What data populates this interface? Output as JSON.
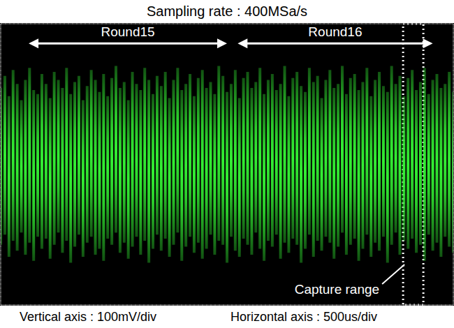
{
  "chart_data": {
    "type": "bar",
    "title": "Sampling rate : 400MSa/s",
    "x_label": "Horizontal axis : 500us/div",
    "y_label": "Vertical axis : 100mV/div",
    "color": "#33ee33",
    "grid": true,
    "tick_labels": false,
    "xlim": [
      -300,
      5200
    ],
    "xticks": [
      0,
      500,
      1000,
      1500,
      2000,
      2500,
      3000,
      3500,
      4000,
      4500,
      5000
    ],
    "ylim": [
      -350,
      350
    ],
    "yticks": [
      -300,
      -200,
      -100,
      0,
      100,
      200,
      300
    ],
    "x": [
      -300,
      -250,
      -200,
      -150,
      -100,
      -50,
      0,
      50,
      100,
      150,
      200,
      250,
      300,
      350,
      400,
      450,
      500,
      550,
      600,
      650,
      700,
      750,
      800,
      850,
      900,
      950,
      1000,
      1050,
      1100,
      1150,
      1200,
      1250,
      1300,
      1350,
      1400,
      1450,
      1500,
      1550,
      1600,
      1650,
      1700,
      1750,
      1800,
      1850,
      1900,
      1950,
      2000,
      2050,
      2100,
      2150,
      2200,
      2250,
      2300,
      2350,
      2400,
      2450,
      2500,
      2550,
      2600,
      2650,
      2700,
      2750,
      2800,
      2850,
      2900,
      2950,
      3000,
      3050,
      3100,
      3150,
      3200,
      3250,
      3300,
      3350,
      3400,
      3450,
      3500,
      3550,
      3600,
      3650,
      3700,
      3750,
      3800,
      3850,
      3900,
      3950,
      4000,
      4050,
      4100,
      4150,
      4200,
      4250,
      4300,
      4350,
      4400,
      4450,
      4500,
      4550,
      4600,
      4650,
      4700,
      4750,
      4800,
      4850,
      4900,
      4950,
      5000,
      5050,
      5100,
      5150,
      5200
    ],
    "values": [
      190,
      220,
      170,
      235,
      200,
      160,
      210,
      240,
      185,
      175,
      225,
      200,
      165,
      230,
      210,
      190,
      240,
      175,
      205,
      220,
      160,
      195,
      235,
      210,
      180,
      225,
      170,
      215,
      245,
      190,
      205,
      160,
      230,
      200,
      185,
      240,
      210,
      175,
      220,
      195,
      230,
      165,
      210,
      240,
      185,
      200,
      225,
      170,
      215,
      235,
      190,
      205,
      175,
      245,
      220,
      180,
      200,
      235,
      165,
      215,
      230,
      190,
      205,
      240,
      175,
      210,
      225,
      185,
      200,
      245,
      170,
      215,
      230,
      195,
      180,
      240,
      205,
      220,
      165,
      210,
      235,
      190,
      200,
      245,
      175,
      215,
      225,
      185,
      205,
      240,
      170,
      210,
      230,
      195,
      180,
      245,
      200,
      220,
      170,
      215,
      235,
      185,
      205,
      240,
      175,
      210,
      225,
      190,
      200,
      230,
      180
    ],
    "low": [
      -200,
      -175,
      -230,
      -190,
      -215,
      -170,
      -225,
      -195,
      -240,
      -180,
      -210,
      -185,
      -235,
      -200,
      -170,
      -220,
      -190,
      -245,
      -205,
      -175,
      -230,
      -195,
      -180,
      -225,
      -210,
      -240,
      -185,
      -200,
      -170,
      -220,
      -195,
      -235,
      -205,
      -180,
      -225,
      -190,
      -245,
      -210,
      -175,
      -215,
      -185,
      -230,
      -200,
      -170,
      -240,
      -205,
      -180,
      -220,
      -195,
      -235,
      -210,
      -175,
      -225,
      -190,
      -200,
      -245,
      -180,
      -215,
      -230,
      -185,
      -200,
      -225,
      -170,
      -210,
      -240,
      -190,
      -205,
      -175,
      -235,
      -195,
      -220,
      -185,
      -200,
      -245,
      -210,
      -175,
      -230,
      -190,
      -215,
      -180,
      -195,
      -235,
      -205,
      -170,
      -225,
      -200,
      -185,
      -240,
      -210,
      -175,
      -230,
      -195,
      -215,
      -180,
      -245,
      -200,
      -170,
      -225,
      -190,
      -210,
      -185,
      -220,
      -200,
      -240,
      -175,
      -215,
      -195,
      -230,
      -180,
      -205,
      -220
    ],
    "annotations": [
      {
        "text": "Round15",
        "x_start": 40,
        "x_end": 2450
      },
      {
        "text": "Round16",
        "x_start": 2580,
        "x_end": 4950
      }
    ],
    "capture_range": {
      "text": "Capture range",
      "x_start": 4590,
      "x_end": 4836
    }
  }
}
